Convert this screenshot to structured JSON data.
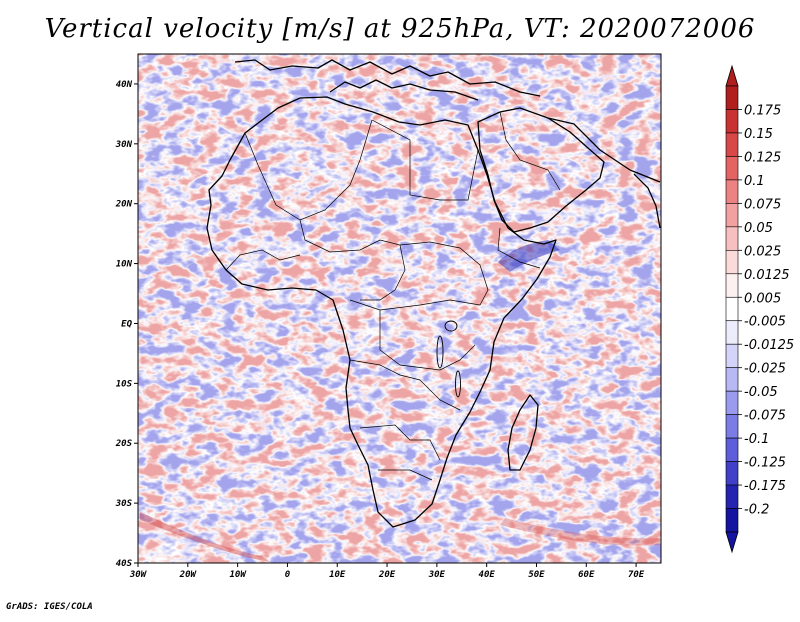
{
  "title": "Vertical velocity [m/s] at 925hPa, VT: 2020072006",
  "footer": "GrADS: IGES/COLA",
  "map": {
    "lon_range": [
      -30,
      75
    ],
    "lat_range": [
      -40,
      45
    ],
    "lon_ticks": [
      "30W",
      "20W",
      "10W",
      "0",
      "10E",
      "20E",
      "30E",
      "40E",
      "50E",
      "60E",
      "70E"
    ],
    "lat_ticks": [
      "40N",
      "30N",
      "20N",
      "10N",
      "EQ",
      "10S",
      "20S",
      "30S",
      "40S"
    ],
    "variable": "vertical velocity",
    "level": "925hPa",
    "valid_time": "2020072006"
  },
  "colorbar": {
    "labels": [
      "0.175",
      "0.15",
      "0.125",
      "0.1",
      "0.075",
      "0.05",
      "0.025",
      "0.0125",
      "0.005",
      "-0.005",
      "-0.0125",
      "-0.025",
      "-0.05",
      "-0.075",
      "-0.1",
      "-0.125",
      "-0.175",
      "-0.2"
    ],
    "colors": [
      "#b01e1e",
      "#c83232",
      "#d84848",
      "#e46464",
      "#ec8282",
      "#f2a0a0",
      "#f7bfbf",
      "#fbdada",
      "#fdf0f0",
      "#ffffff",
      "#ececfd",
      "#d4d4fa",
      "#b8b8f5",
      "#9a9aef",
      "#7c7ce6",
      "#5e5edc",
      "#4040c8",
      "#2424b0",
      "#1414a0"
    ]
  }
}
